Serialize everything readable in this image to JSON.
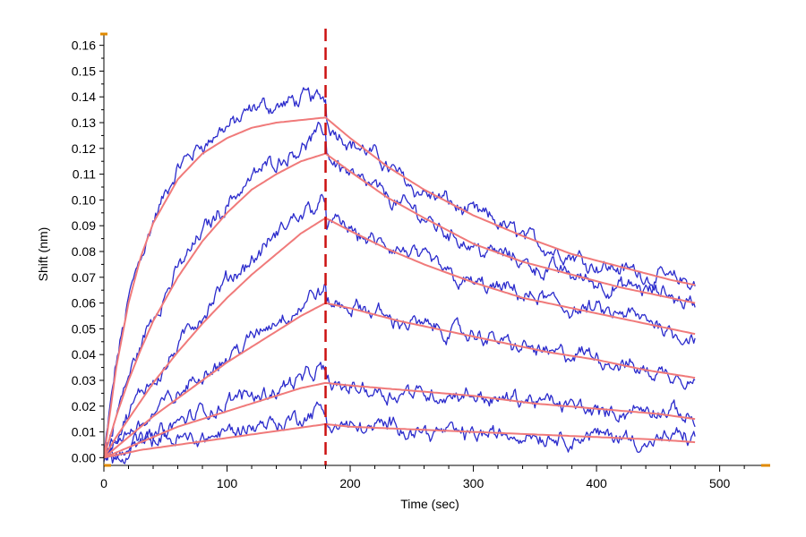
{
  "chart_data": {
    "type": "line",
    "title": "",
    "xlabel": "Time (sec)",
    "ylabel": "Shift (nm)",
    "xlim": [
      0,
      525
    ],
    "ylim": [
      -0.003,
      0.163
    ],
    "x_ticks": [
      0,
      100,
      200,
      300,
      400,
      500
    ],
    "y_ticks": [
      "0.00",
      "0.01",
      "0.02",
      "0.03",
      "0.04",
      "0.05",
      "0.06",
      "0.07",
      "0.08",
      "0.09",
      "0.10",
      "0.11",
      "0.12",
      "0.13",
      "0.14",
      "0.15",
      "0.16"
    ],
    "grid": false,
    "legend": "none",
    "association_end_time": 180,
    "dissociation_end_time": 480,
    "colors": {
      "data": "#2b2bcc",
      "fit": "#f07a7a",
      "marker": "#cc1111",
      "axis": "#000000",
      "axis_accent": "#e08a00"
    },
    "series": [
      {
        "x": [
          0,
          10,
          20,
          30,
          40,
          60,
          80,
          100,
          120,
          140,
          160,
          180,
          200,
          230,
          260,
          300,
          340,
          380,
          420,
          460,
          480
        ],
        "values": [
          0.0,
          0.035,
          0.06,
          0.078,
          0.091,
          0.108,
          0.118,
          0.124,
          0.128,
          0.13,
          0.131,
          0.132,
          0.124,
          0.113,
          0.104,
          0.094,
          0.086,
          0.079,
          0.074,
          0.069,
          0.067
        ]
      },
      {
        "x": [
          0,
          10,
          20,
          30,
          40,
          60,
          80,
          100,
          120,
          140,
          160,
          180,
          200,
          230,
          260,
          300,
          340,
          380,
          420,
          460,
          480
        ],
        "values": [
          0.0,
          0.016,
          0.03,
          0.042,
          0.053,
          0.07,
          0.084,
          0.095,
          0.104,
          0.11,
          0.115,
          0.118,
          0.111,
          0.101,
          0.093,
          0.083,
          0.076,
          0.071,
          0.066,
          0.062,
          0.06
        ]
      },
      {
        "x": [
          0,
          10,
          20,
          30,
          40,
          60,
          80,
          100,
          120,
          140,
          160,
          180,
          200,
          230,
          260,
          300,
          340,
          380,
          420,
          460,
          480
        ],
        "values": [
          0.0,
          0.008,
          0.015,
          0.022,
          0.029,
          0.041,
          0.052,
          0.062,
          0.071,
          0.079,
          0.087,
          0.093,
          0.088,
          0.081,
          0.075,
          0.068,
          0.062,
          0.058,
          0.054,
          0.05,
          0.048
        ]
      },
      {
        "x": [
          0,
          20,
          40,
          60,
          80,
          100,
          120,
          140,
          160,
          180,
          200,
          240,
          280,
          320,
          360,
          400,
          440,
          480
        ],
        "values": [
          0.0,
          0.008,
          0.016,
          0.023,
          0.03,
          0.037,
          0.043,
          0.049,
          0.055,
          0.06,
          0.058,
          0.053,
          0.049,
          0.045,
          0.041,
          0.038,
          0.034,
          0.031
        ]
      },
      {
        "x": [
          0,
          20,
          40,
          60,
          80,
          100,
          120,
          140,
          160,
          180,
          200,
          250,
          300,
          350,
          400,
          450,
          480
        ],
        "values": [
          0.0,
          0.004,
          0.008,
          0.012,
          0.015,
          0.018,
          0.021,
          0.024,
          0.027,
          0.029,
          0.028,
          0.026,
          0.024,
          0.021,
          0.019,
          0.017,
          0.015
        ]
      },
      {
        "x": [
          0,
          30,
          60,
          90,
          120,
          150,
          180,
          200,
          250,
          300,
          350,
          400,
          450,
          480
        ],
        "values": [
          0.0,
          0.003,
          0.005,
          0.007,
          0.009,
          0.011,
          0.013,
          0.012,
          0.011,
          0.01,
          0.009,
          0.008,
          0.007,
          0.006
        ]
      }
    ]
  }
}
